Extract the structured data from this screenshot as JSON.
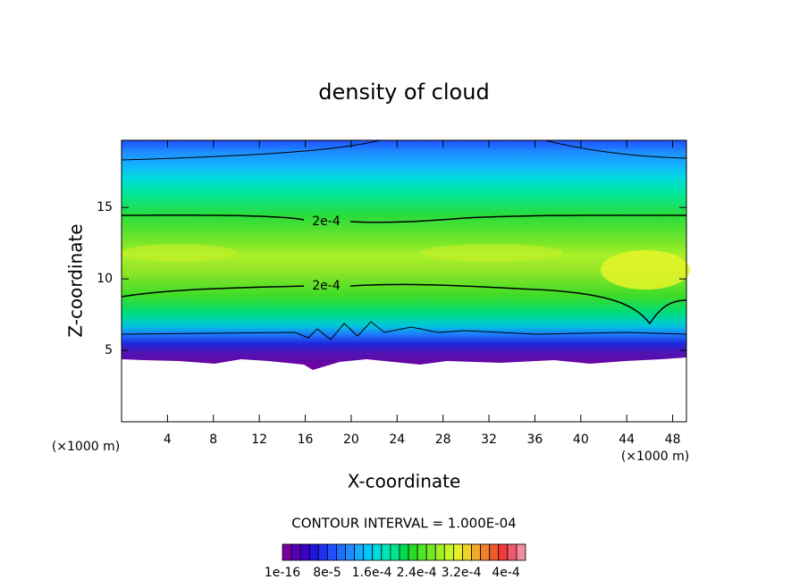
{
  "chart_data": {
    "type": "contour",
    "title": "density of cloud",
    "xlabel": "X-coordinate",
    "ylabel": "Z-coordinate",
    "x_unit_label": "(×1000 m)",
    "y_unit_label": "(×1000 m)",
    "xlim": [
      0,
      49.2
    ],
    "xticks": [
      4,
      8,
      12,
      16,
      20,
      24,
      28,
      32,
      36,
      40,
      44,
      48
    ],
    "ylim": [
      0,
      19.7
    ],
    "yticks": [
      5,
      10,
      15
    ],
    "contour_labels": [
      "2e-4",
      "2e-4"
    ],
    "contour_interval": "CONTOUR INTERVAL = 1.000E-04",
    "clim": [
      0,
      0.000435
    ],
    "colorbar_ticks": [
      {
        "value": 1e-16,
        "label": "1e-16"
      },
      {
        "value": 8e-05,
        "label": "8e-5"
      },
      {
        "value": 0.00016,
        "label": "1.6e-4"
      },
      {
        "value": 0.00024,
        "label": "2.4e-4"
      },
      {
        "value": 0.00032,
        "label": "3.2e-4"
      },
      {
        "value": 0.0004,
        "label": "4e-4"
      }
    ],
    "colorbar_colors": [
      "#7800a0",
      "#5a00b4",
      "#3c00c8",
      "#1e14dc",
      "#1e32f0",
      "#1e50ff",
      "#1e6eff",
      "#1e8cff",
      "#14aaff",
      "#00c8ff",
      "#00dcdc",
      "#00e6b4",
      "#00e68c",
      "#00dc50",
      "#28dc28",
      "#50e628",
      "#78e628",
      "#a0f028",
      "#c8f528",
      "#e6f028",
      "#f0d228",
      "#f0aa28",
      "#f08228",
      "#f05a28",
      "#f03c3c",
      "#f05a6e",
      "#f08c9b"
    ]
  }
}
